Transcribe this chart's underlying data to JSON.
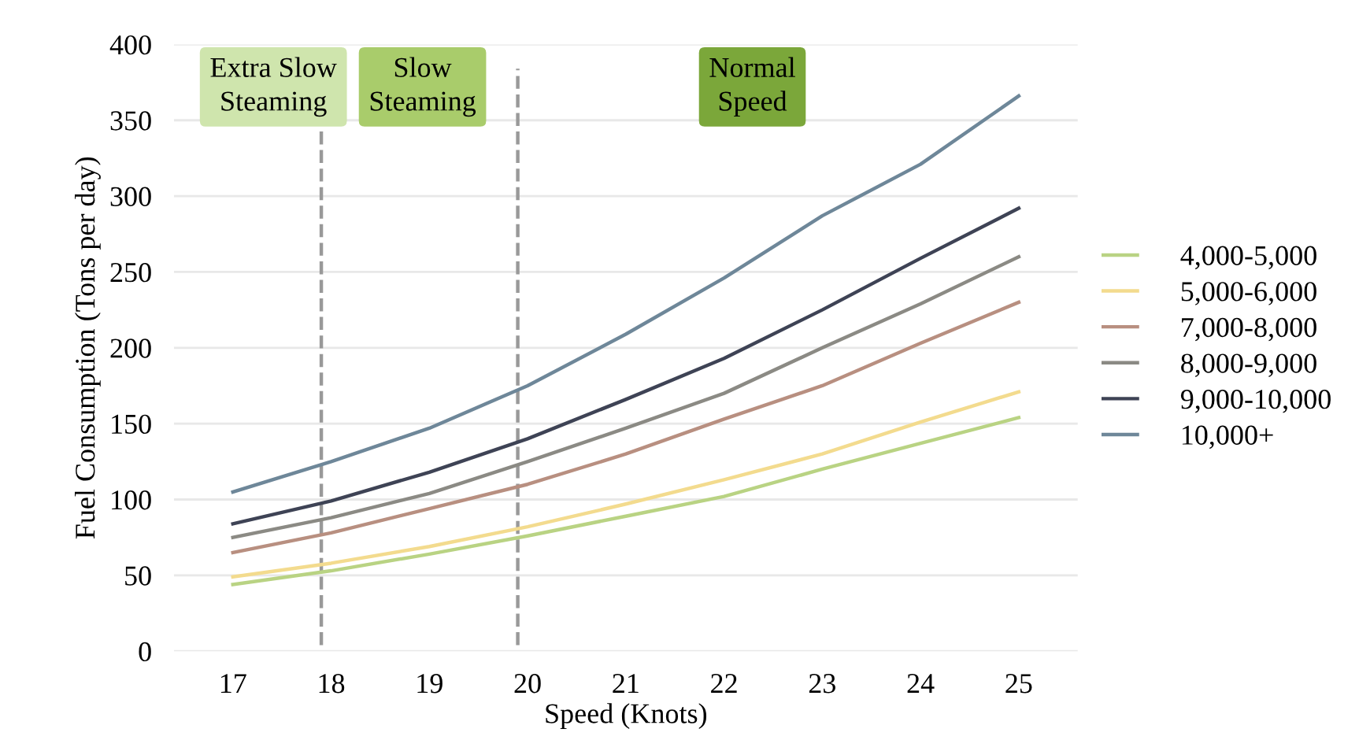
{
  "chart_data": {
    "type": "line",
    "xlabel": "Speed (Knots)",
    "ylabel": "Fuel Consumption (Tons per day)",
    "x": [
      17,
      18,
      19,
      20,
      21,
      22,
      23,
      24,
      25
    ],
    "xlim": [
      16.4,
      25.6
    ],
    "xticks": [
      17,
      18,
      19,
      20,
      21,
      22,
      23,
      24,
      25
    ],
    "ylim": [
      0,
      400
    ],
    "yticks": [
      0,
      50,
      100,
      150,
      200,
      250,
      300,
      350,
      400
    ],
    "grid": "y",
    "legend": "right",
    "line_style": "solid",
    "marker": "none",
    "series": [
      {
        "name": "4,000-5,000",
        "color": "#b9d383",
        "values": [
          44,
          53,
          64,
          76,
          89,
          102,
          120,
          137,
          154
        ]
      },
      {
        "name": "5,000-6,000",
        "color": "#f3db8e",
        "values": [
          49,
          58,
          69,
          82,
          97,
          113,
          130,
          151,
          171
        ]
      },
      {
        "name": "7,000-8,000",
        "color": "#b88f80",
        "values": [
          65,
          78,
          94,
          110,
          130,
          153,
          175,
          203,
          230
        ]
      },
      {
        "name": "8,000-9,000",
        "color": "#8b8a84",
        "values": [
          75,
          88,
          104,
          125,
          147,
          170,
          200,
          229,
          260
        ]
      },
      {
        "name": "9,000-10,000",
        "color": "#3e4355",
        "values": [
          84,
          99,
          118,
          140,
          166,
          193,
          225,
          259,
          292
        ]
      },
      {
        "name": "10,000+",
        "color": "#6e8799",
        "values": [
          105,
          125,
          147,
          175,
          209,
          246,
          287,
          321,
          366
        ]
      }
    ],
    "ref_lines": [
      {
        "axis": "x",
        "value": 17.9,
        "color": "#999999",
        "line_style": "dashed"
      },
      {
        "axis": "x",
        "value": 19.9,
        "color": "#999999",
        "line_style": "dashed"
      }
    ],
    "annotations": [
      "Extra Slow\nSteaming",
      "Slow\nSteaming",
      "Normal\nSpeed"
    ]
  }
}
